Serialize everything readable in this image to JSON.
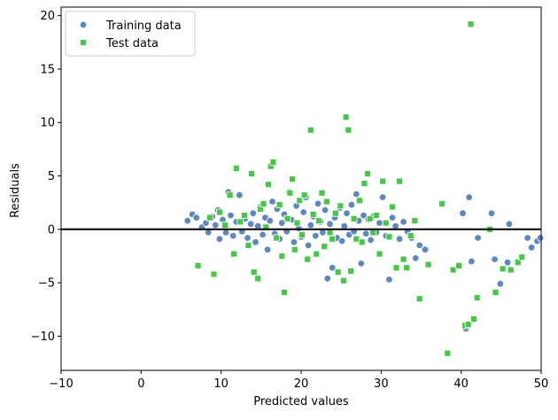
{
  "chart_data": {
    "type": "scatter",
    "title": "",
    "xlabel": "Predicted values",
    "ylabel": "Residuals",
    "xlim": [
      -10,
      50
    ],
    "ylim": [
      -13.2,
      20.8
    ],
    "xticks": [
      -10,
      0,
      10,
      20,
      30,
      40,
      50
    ],
    "yticks": [
      -10,
      -5,
      0,
      5,
      10,
      15,
      20
    ],
    "grid": false,
    "legend_position": "top-left",
    "reference_line": {
      "y": 0,
      "color": "#000000"
    },
    "series": [
      {
        "name": "Training data",
        "marker": "circle",
        "color": "#5b88c0",
        "points": [
          [
            5.8,
            0.8
          ],
          [
            6.4,
            1.4
          ],
          [
            6.9,
            1.1
          ],
          [
            7.6,
            0.2
          ],
          [
            8.1,
            0.6
          ],
          [
            8.4,
            -0.3
          ],
          [
            8.9,
            1.2
          ],
          [
            9.3,
            0.4
          ],
          [
            9.6,
            1.8
          ],
          [
            9.8,
            -0.9
          ],
          [
            10.2,
            0.9
          ],
          [
            10.6,
            -0.3
          ],
          [
            10.9,
            3.5
          ],
          [
            11.2,
            1.3
          ],
          [
            11.5,
            -0.6
          ],
          [
            11.9,
            0.7
          ],
          [
            12.3,
            3.2
          ],
          [
            12.6,
            -0.2
          ],
          [
            13.0,
            1.0
          ],
          [
            13.3,
            -0.8
          ],
          [
            13.7,
            0.5
          ],
          [
            14.0,
            1.5
          ],
          [
            14.3,
            -1.2
          ],
          [
            14.6,
            0.3
          ],
          [
            14.9,
            2.1
          ],
          [
            15.2,
            -0.5
          ],
          [
            15.5,
            1.1
          ],
          [
            15.8,
            -1.9
          ],
          [
            16.1,
            0.8
          ],
          [
            16.4,
            2.6
          ],
          [
            16.7,
            -0.4
          ],
          [
            17.0,
            1.9
          ],
          [
            17.3,
            -0.9
          ],
          [
            17.6,
            0.6
          ],
          [
            17.9,
            1.4
          ],
          [
            18.2,
            -0.2
          ],
          [
            18.5,
            3.5
          ],
          [
            18.8,
            0.9
          ],
          [
            19.1,
            -1.2
          ],
          [
            19.4,
            2.2
          ],
          [
            19.7,
            0.1
          ],
          [
            20.0,
            -0.7
          ],
          [
            20.3,
            1.6
          ],
          [
            20.6,
            3.0
          ],
          [
            20.9,
            -1.5
          ],
          [
            21.2,
            0.4
          ],
          [
            21.5,
            1.2
          ],
          [
            21.8,
            -0.6
          ],
          [
            22.1,
            2.4
          ],
          [
            22.4,
            0.7
          ],
          [
            22.7,
            -0.3
          ],
          [
            23.0,
            1.8
          ],
          [
            23.3,
            -4.6
          ],
          [
            23.6,
            0.5
          ],
          [
            23.9,
            -3.6
          ],
          [
            24.2,
            1.1
          ],
          [
            24.5,
            -0.8
          ],
          [
            24.8,
            2.0
          ],
          [
            25.1,
            -1.1
          ],
          [
            25.4,
            0.3
          ],
          [
            25.7,
            1.5
          ],
          [
            26.0,
            -0.5
          ],
          [
            26.3,
            2.3
          ],
          [
            26.6,
            -0.2
          ],
          [
            26.9,
            3.3
          ],
          [
            27.2,
            0.8
          ],
          [
            27.5,
            -3.2
          ],
          [
            27.8,
            1.3
          ],
          [
            28.1,
            -0.4
          ],
          [
            28.4,
            0.9
          ],
          [
            28.7,
            -1.0
          ],
          [
            29.0,
            1.2
          ],
          [
            29.4,
            -0.3
          ],
          [
            29.8,
            0.6
          ],
          [
            30.2,
            3.0
          ],
          [
            30.6,
            -0.6
          ],
          [
            31.0,
            -4.7
          ],
          [
            31.4,
            1.1
          ],
          [
            31.8,
            0.3
          ],
          [
            32.3,
            -0.9
          ],
          [
            32.8,
            0.7
          ],
          [
            33.3,
            -0.2
          ],
          [
            33.8,
            -0.8
          ],
          [
            34.3,
            -2.7
          ],
          [
            34.8,
            -1.5
          ],
          [
            35.5,
            -1.9
          ],
          [
            40.2,
            1.5
          ],
          [
            40.6,
            -9.3
          ],
          [
            41.0,
            3.0
          ],
          [
            41.3,
            -3.0
          ],
          [
            42.1,
            -0.8
          ],
          [
            43.8,
            1.5
          ],
          [
            44.2,
            -2.8
          ],
          [
            44.9,
            -5.1
          ],
          [
            45.8,
            -3.1
          ],
          [
            46.0,
            0.5
          ],
          [
            47.0,
            -3.0
          ],
          [
            48.3,
            -0.8
          ],
          [
            48.8,
            -1.7
          ],
          [
            49.5,
            -1.1
          ],
          [
            49.9,
            -0.8
          ]
        ]
      },
      {
        "name": "Test data",
        "marker": "square",
        "color": "#44c944",
        "points": [
          [
            7.1,
            -3.4
          ],
          [
            8.6,
            1.1
          ],
          [
            9.1,
            -4.2
          ],
          [
            9.8,
            1.6
          ],
          [
            10.5,
            0.4
          ],
          [
            11.1,
            3.2
          ],
          [
            11.6,
            -2.3
          ],
          [
            11.9,
            5.7
          ],
          [
            12.4,
            0.7
          ],
          [
            12.9,
            1.3
          ],
          [
            13.4,
            -1.5
          ],
          [
            13.8,
            5.2
          ],
          [
            14.1,
            -4.0
          ],
          [
            14.6,
            -4.6
          ],
          [
            14.9,
            1.9
          ],
          [
            15.3,
            2.4
          ],
          [
            15.6,
            0.2
          ],
          [
            15.9,
            4.2
          ],
          [
            16.2,
            5.9
          ],
          [
            16.5,
            6.3
          ],
          [
            16.9,
            -0.8
          ],
          [
            17.3,
            2.3
          ],
          [
            17.6,
            -2.5
          ],
          [
            17.9,
            -5.9
          ],
          [
            18.3,
            1.0
          ],
          [
            18.6,
            3.4
          ],
          [
            18.9,
            4.7
          ],
          [
            19.2,
            -1.9
          ],
          [
            19.5,
            0.6
          ],
          [
            19.8,
            2.7
          ],
          [
            20.1,
            -0.5
          ],
          [
            20.4,
            3.2
          ],
          [
            20.8,
            -2.8
          ],
          [
            21.2,
            9.3
          ],
          [
            21.5,
            1.4
          ],
          [
            21.9,
            -2.3
          ],
          [
            22.2,
            0.8
          ],
          [
            22.6,
            3.4
          ],
          [
            22.9,
            -1.6
          ],
          [
            23.2,
            2.6
          ],
          [
            23.6,
            -0.3
          ],
          [
            23.9,
            -0.9
          ],
          [
            24.3,
            1.5
          ],
          [
            24.6,
            -4.0
          ],
          [
            24.9,
            2.2
          ],
          [
            25.3,
            -4.8
          ],
          [
            25.6,
            10.5
          ],
          [
            25.9,
            9.3
          ],
          [
            26.2,
            -3.9
          ],
          [
            26.6,
            1.0
          ],
          [
            26.9,
            -0.9
          ],
          [
            27.3,
            2.7
          ],
          [
            27.6,
            -1.2
          ],
          [
            27.9,
            4.3
          ],
          [
            28.3,
            5.2
          ],
          [
            28.6,
            1.0
          ],
          [
            29.0,
            -0.3
          ],
          [
            29.4,
            1.3
          ],
          [
            29.8,
            -2.3
          ],
          [
            30.2,
            4.5
          ],
          [
            30.6,
            0.6
          ],
          [
            31.0,
            -0.7
          ],
          [
            31.4,
            2.1
          ],
          [
            31.9,
            -3.6
          ],
          [
            32.3,
            4.5
          ],
          [
            32.8,
            -2.8
          ],
          [
            33.2,
            -3.6
          ],
          [
            33.7,
            -0.6
          ],
          [
            34.2,
            0.8
          ],
          [
            34.8,
            -6.5
          ],
          [
            35.9,
            -3.3
          ],
          [
            37.6,
            2.4
          ],
          [
            38.3,
            -11.6
          ],
          [
            39.0,
            -3.8
          ],
          [
            39.7,
            -3.4
          ],
          [
            40.5,
            -9.0
          ],
          [
            40.9,
            -8.9
          ],
          [
            41.2,
            19.2
          ],
          [
            41.6,
            -8.4
          ],
          [
            42.0,
            -6.4
          ],
          [
            43.6,
            0.0
          ],
          [
            44.3,
            -5.9
          ],
          [
            45.2,
            -3.7
          ],
          [
            46.2,
            -3.8
          ],
          [
            47.1,
            -3.1
          ],
          [
            47.6,
            -2.6
          ]
        ]
      }
    ]
  }
}
